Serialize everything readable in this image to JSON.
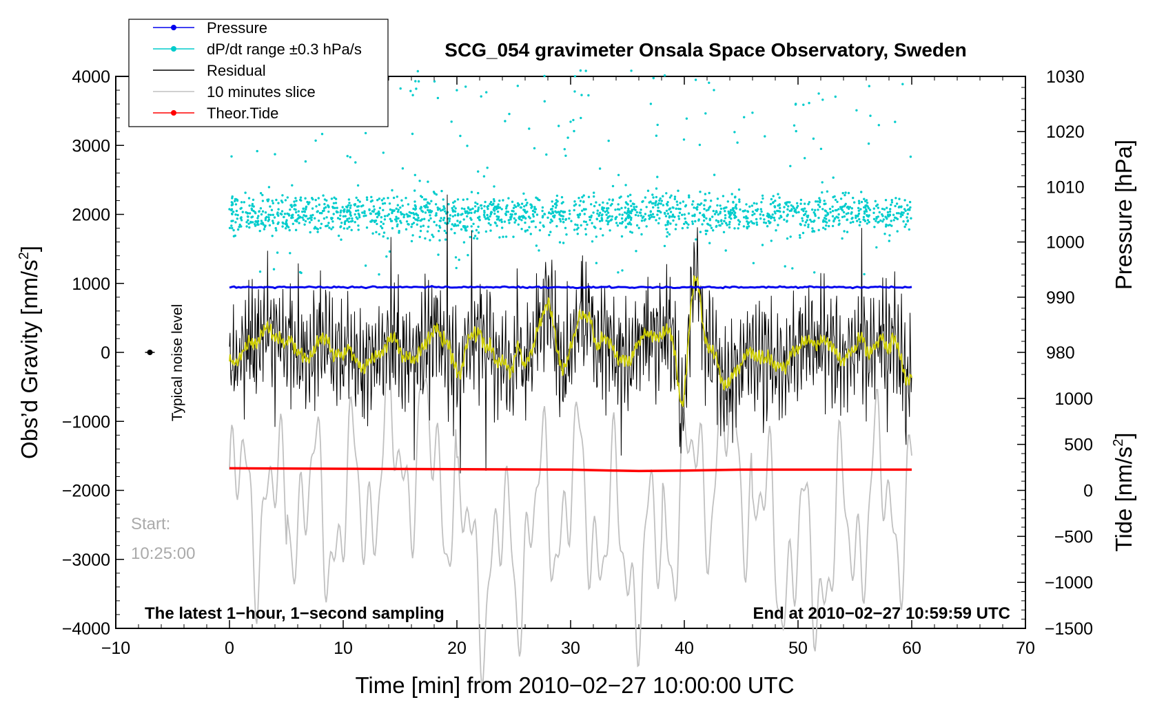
{
  "chart_data": {
    "type": "line",
    "title": "SCG_054 gravimeter Onsala Space Observatory, Sweden",
    "xlabel": "Time [min] from 2010−02−27 10:00:00 UTC",
    "ylabel_left": "Obs’d Gravity [nm/s",
    "ylabel_left_sup": "2",
    "ylabel_left_end": "]",
    "ylabel_right_pressure": "Pressure [hPa]",
    "ylabel_right_tide": "Tide [nm/s",
    "ylabel_right_tide_sup": "2",
    "ylabel_right_tide_end": "]",
    "xlim": [
      -10,
      70
    ],
    "ylim_left": [
      -4000,
      4000
    ],
    "ylim_pressure": [
      930,
      1030
    ],
    "ylim_tide": [
      -1500,
      4500
    ],
    "x_ticks": [
      -10,
      0,
      10,
      20,
      30,
      40,
      50,
      60,
      70
    ],
    "x_tick_labels": [
      "−10",
      "0",
      "10",
      "20",
      "30",
      "40",
      "50",
      "60",
      "70"
    ],
    "y_left_ticks": [
      -4000,
      -3000,
      -2000,
      -1000,
      0,
      1000,
      2000,
      3000,
      4000
    ],
    "y_left_tick_labels": [
      "−4000",
      "−3000",
      "−2000",
      "−1000",
      "0",
      "1000",
      "2000",
      "3000",
      "4000"
    ],
    "y_pressure_ticks": [
      980,
      990,
      1000,
      1010,
      1020,
      1030
    ],
    "y_pressure_tick_labels": [
      "980",
      "990",
      "1000",
      "1010",
      "1020",
      "1030"
    ],
    "y_tide_ticks": [
      -1500,
      -1000,
      -500,
      0,
      500,
      1000
    ],
    "y_tide_tick_labels": [
      "−1500",
      "−1000",
      "−500",
      "0",
      "500",
      "1000"
    ],
    "legend": {
      "position": "top-left",
      "entries": [
        {
          "label": "Pressure",
          "color": "#0000ee",
          "marker": true
        },
        {
          "label": "dP/dt range ±0.3 hPa/s",
          "color": "#00cccc",
          "marker": true
        },
        {
          "label": "Residual",
          "color": "#000000",
          "marker": false
        },
        {
          "label": "10 minutes slice",
          "color": "#c0c0c0",
          "marker": false
        },
        {
          "label": "Theor.Tide",
          "color": "#ff0000",
          "marker": true
        }
      ]
    },
    "annotations": {
      "noise_label": "Typical noise level",
      "noise_point": {
        "x": -7,
        "y": 0
      },
      "start_label": "Start:",
      "start_time": "10:25:00",
      "sampling_note": "The latest 1−hour, 1−second sampling",
      "end_note": "End at 2010−02−27 10:59:59 UTC"
    },
    "series": [
      {
        "name": "Pressure",
        "axis": "pressure",
        "color": "#0000ee",
        "x": [
          0,
          60
        ],
        "values": [
          991.8,
          991.8
        ]
      },
      {
        "name": "dP/dt range ±0.3 hPa/s",
        "axis": "left",
        "color": "#00cccc",
        "style": "scatter",
        "x_range": [
          0,
          60
        ],
        "center": 2000,
        "spread": 250,
        "count": 1800
      },
      {
        "name": "Residual",
        "axis": "left",
        "color": "#000000",
        "x_range": [
          0,
          60
        ]
      },
      {
        "name": "10 minutes slice",
        "axis": "left",
        "color": "#c0c0c0",
        "x_range": [
          0,
          60
        ]
      },
      {
        "name": "Theor.Tide",
        "axis": "tide",
        "color": "#ff0000",
        "x": [
          0,
          10,
          20,
          30,
          34,
          36,
          40,
          45,
          50,
          60
        ],
        "values": [
          240,
          235,
          230,
          225,
          215,
          210,
          215,
          225,
          225,
          225
        ]
      }
    ],
    "filtered_color": "#cccc00",
    "residual_key_points": {
      "x": [
        0,
        2,
        3.5,
        5,
        7,
        8,
        10,
        12,
        14,
        16,
        18,
        20,
        22,
        24,
        26,
        28,
        29.3,
        31,
        33,
        35,
        37,
        39,
        39.7,
        41,
        42,
        44,
        46,
        48,
        50,
        52,
        54,
        56,
        58,
        60
      ],
      "values": [
        -200,
        200,
        300,
        0,
        -100,
        200,
        0,
        -200,
        100,
        -100,
        300,
        -100,
        300,
        -200,
        -100,
        600,
        -300,
        500,
        100,
        -100,
        300,
        200,
        -800,
        1200,
        100,
        -500,
        0,
        -200,
        100,
        200,
        -100,
        100,
        200,
        -400
      ]
    }
  }
}
